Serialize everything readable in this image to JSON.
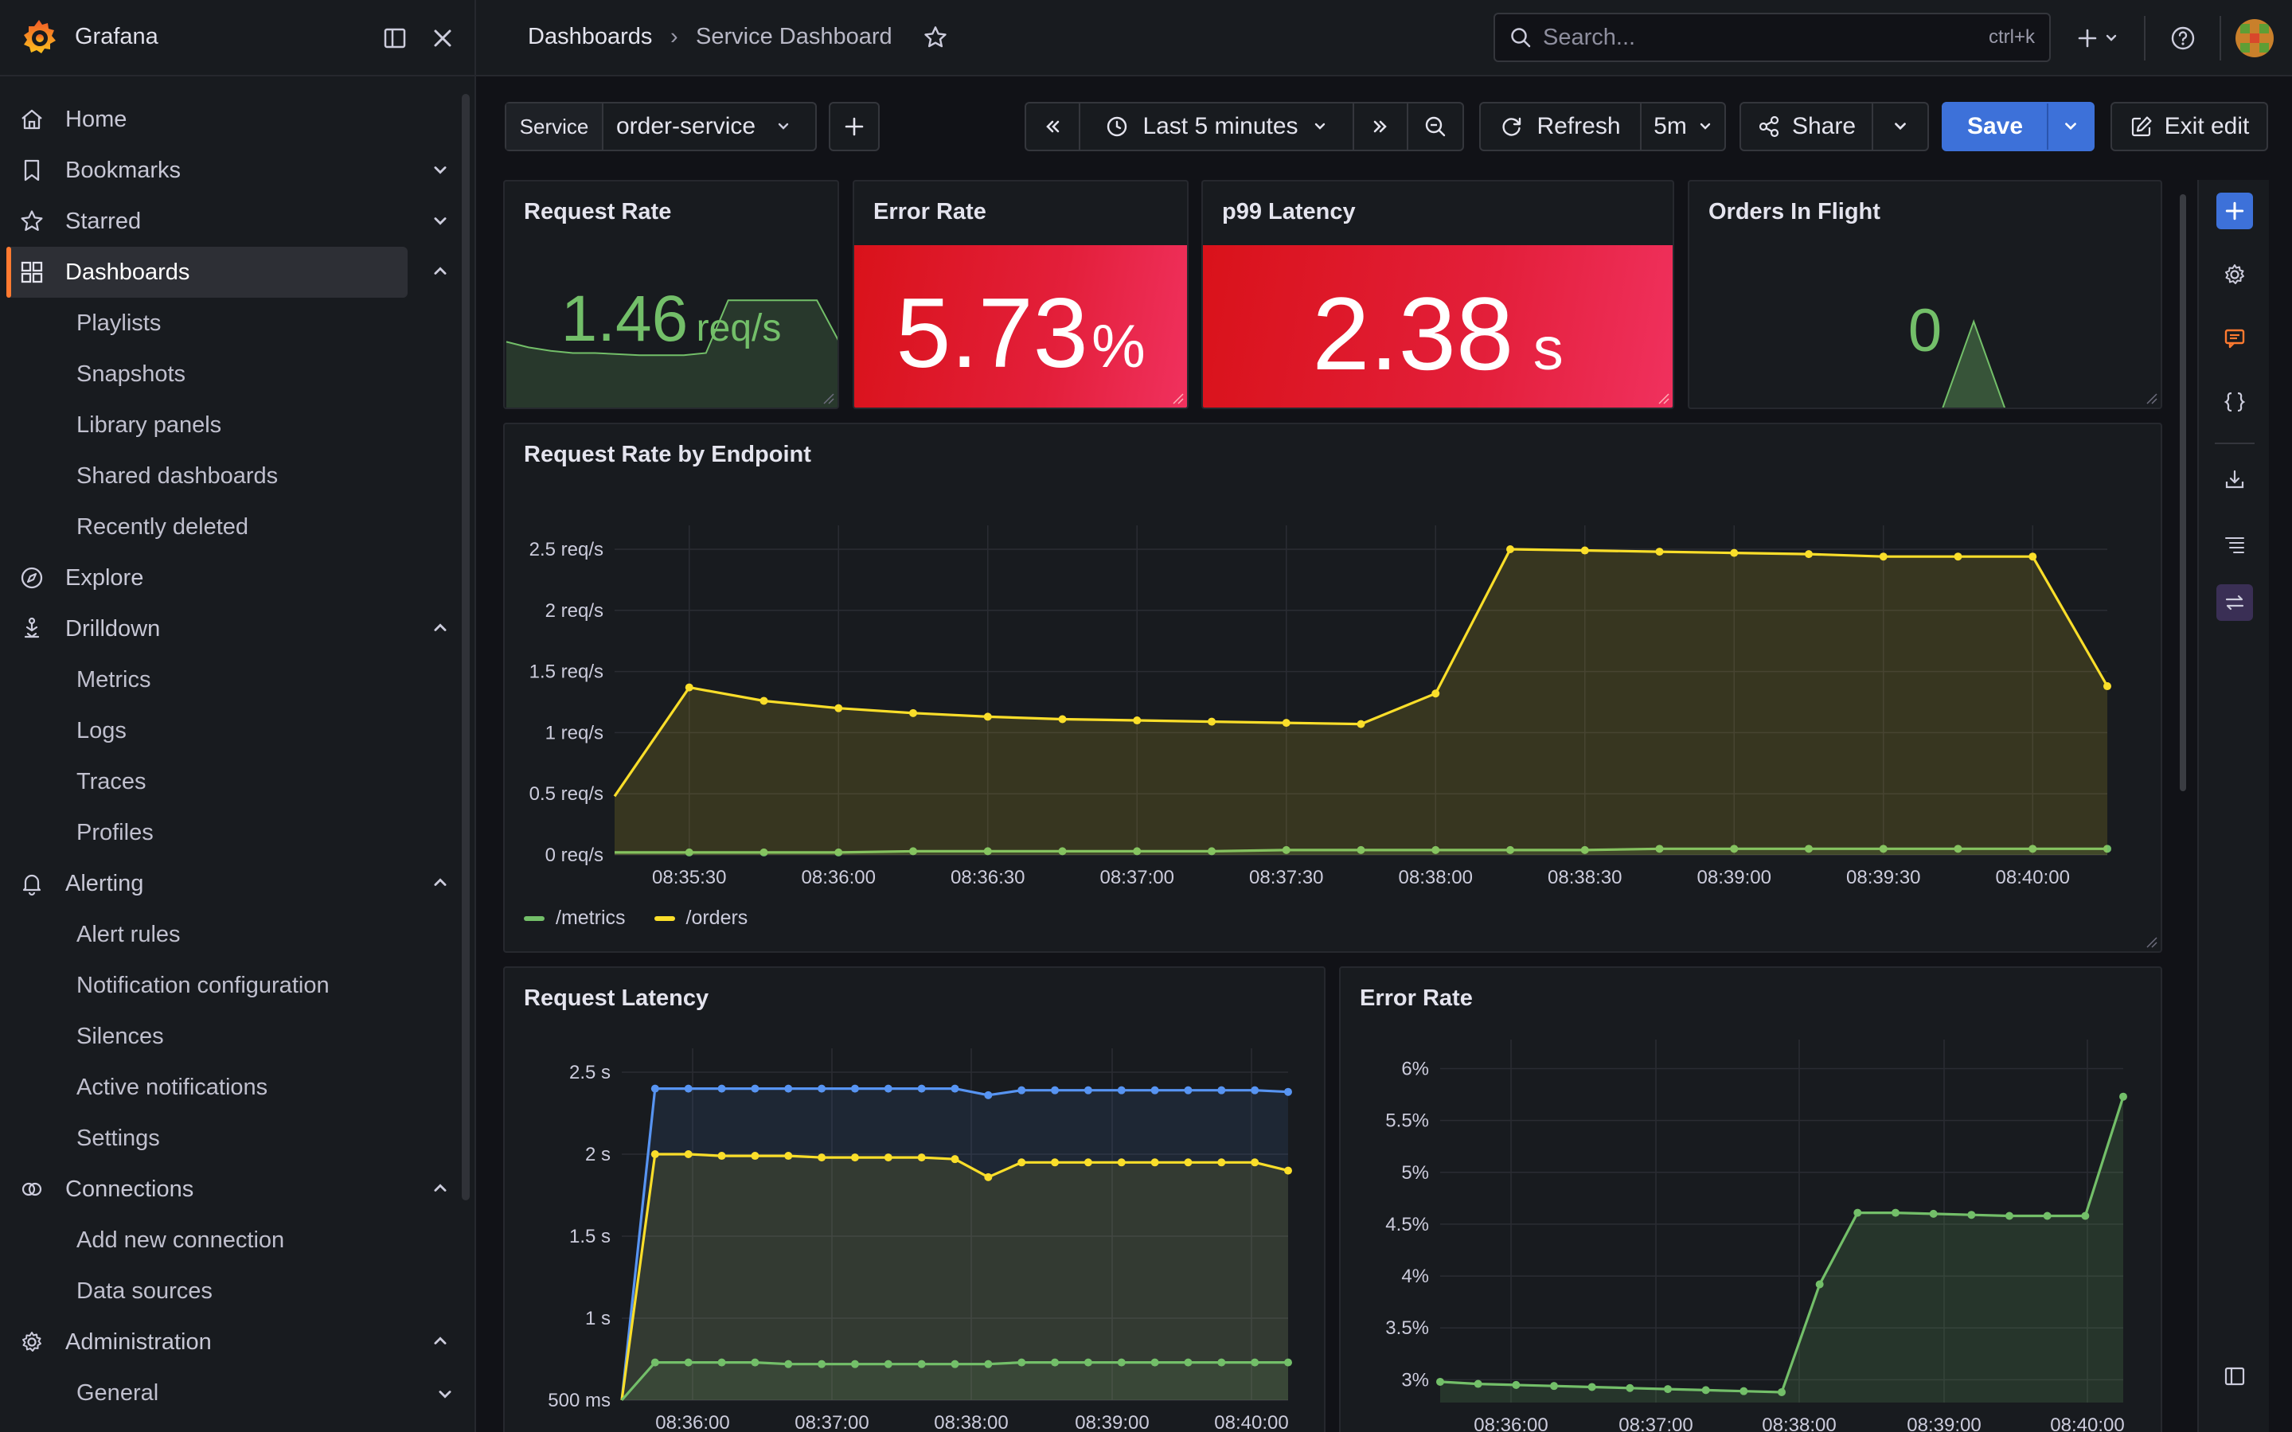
{
  "app": {
    "name": "Grafana"
  },
  "breadcrumb": {
    "root": "Dashboards",
    "separator": "›",
    "current": "Service Dashboard"
  },
  "search": {
    "placeholder": "Search...",
    "shortcut": "ctrl+k"
  },
  "sidebar": {
    "items": [
      {
        "label": "Home",
        "icon": "home-icon",
        "expandable": false,
        "active": false
      },
      {
        "label": "Bookmarks",
        "icon": "bookmark-icon",
        "expandable": true,
        "expanded": false
      },
      {
        "label": "Starred",
        "icon": "star-icon",
        "expandable": true,
        "expanded": false
      },
      {
        "label": "Dashboards",
        "icon": "dashboards-grid-icon",
        "expandable": true,
        "expanded": true,
        "active": true,
        "children": [
          "Playlists",
          "Snapshots",
          "Library panels",
          "Shared dashboards",
          "Recently deleted"
        ]
      },
      {
        "label": "Explore",
        "icon": "compass-icon",
        "expandable": false
      },
      {
        "label": "Drilldown",
        "icon": "drilldown-icon",
        "expandable": true,
        "expanded": true,
        "children": [
          "Metrics",
          "Logs",
          "Traces",
          "Profiles"
        ]
      },
      {
        "label": "Alerting",
        "icon": "bell-icon",
        "expandable": true,
        "expanded": true,
        "children": [
          "Alert rules",
          "Notification configuration",
          "Silences",
          "Active notifications",
          "Settings"
        ]
      },
      {
        "label": "Connections",
        "icon": "connections-icon",
        "expandable": true,
        "expanded": true,
        "children": [
          "Add new connection",
          "Data sources"
        ]
      },
      {
        "label": "Administration",
        "icon": "gear-icon",
        "expandable": true,
        "expanded": true,
        "children": [
          "General"
        ]
      }
    ]
  },
  "toolbar": {
    "variable_label": "Service",
    "variable_value": "order-service",
    "time_range": "Last 5 minutes",
    "refresh_label": "Refresh",
    "refresh_interval": "5m",
    "share_label": "Share",
    "save_label": "Save",
    "exit_label": "Exit edit"
  },
  "colors": {
    "accent": "#ff7a30",
    "primary_button": "#3d71d9",
    "stat_red": "#e31f3a",
    "series_green": "#73bf69",
    "series_yellow": "#fade2a",
    "series_blue": "#5794f2"
  },
  "stats": {
    "request_rate": {
      "title": "Request Rate",
      "value": "1.46",
      "unit": "req/s",
      "color": "#73bf69",
      "sparkline": [
        0.6,
        0.55,
        0.52,
        0.5,
        0.5,
        0.49,
        0.48,
        0.48,
        0.48,
        0.5,
        0.97,
        0.97,
        0.97,
        0.97,
        0.97,
        0.6
      ]
    },
    "error_rate": {
      "title": "Error Rate",
      "value": "5.73",
      "unit": "%"
    },
    "p99_latency": {
      "title": "p99 Latency",
      "value": "2.38",
      "unit": "s"
    },
    "orders_in_flight": {
      "title": "Orders In Flight",
      "value": "0",
      "sparkline": [
        0,
        0,
        0,
        0,
        0,
        0,
        0,
        0,
        0,
        1,
        0,
        0,
        0,
        0,
        0,
        0
      ]
    }
  },
  "chart_data": [
    {
      "type": "area",
      "title": "Request Rate by Endpoint",
      "x": [
        "08:35:22",
        "08:35:30",
        "08:35:45",
        "08:36:00",
        "08:36:15",
        "08:36:30",
        "08:36:45",
        "08:37:00",
        "08:37:15",
        "08:37:30",
        "08:37:45",
        "08:38:00",
        "08:38:15",
        "08:38:30",
        "08:38:45",
        "08:39:00",
        "08:39:15",
        "08:39:30",
        "08:39:45",
        "08:40:00",
        "08:40:15"
      ],
      "x_ticks": [
        "08:35:30",
        "08:36:00",
        "08:36:30",
        "08:37:00",
        "08:37:30",
        "08:38:00",
        "08:38:30",
        "08:39:00",
        "08:39:30",
        "08:40:00"
      ],
      "y_ticks": [
        "0 req/s",
        "0.5 req/s",
        "1 req/s",
        "1.5 req/s",
        "2 req/s",
        "2.5 req/s"
      ],
      "ylim": [
        0,
        2.5
      ],
      "series": [
        {
          "name": "/metrics",
          "color": "#73bf69",
          "values": [
            0.02,
            0.02,
            0.02,
            0.02,
            0.03,
            0.03,
            0.03,
            0.03,
            0.03,
            0.04,
            0.04,
            0.04,
            0.04,
            0.04,
            0.05,
            0.05,
            0.05,
            0.05,
            0.05,
            0.05,
            0.05
          ]
        },
        {
          "name": "/orders",
          "color": "#fade2a",
          "values": [
            0.48,
            1.37,
            1.26,
            1.2,
            1.16,
            1.13,
            1.11,
            1.1,
            1.09,
            1.08,
            1.07,
            1.32,
            2.5,
            2.49,
            2.48,
            2.47,
            2.46,
            2.44,
            2.44,
            2.44,
            1.38
          ]
        }
      ],
      "legend": "bottom-left"
    },
    {
      "type": "area",
      "title": "Request Latency",
      "x_ticks": [
        "08:36:00",
        "08:37:00",
        "08:38:00",
        "08:39:00",
        "08:40:00"
      ],
      "y_ticks": [
        "500 ms",
        "1 s",
        "1.5 s",
        "2 s",
        "2.5 s"
      ],
      "ylim": [
        0.5,
        2.5
      ],
      "series": [
        {
          "color": "#5794f2",
          "values": [
            0.5,
            2.4,
            2.4,
            2.4,
            2.4,
            2.4,
            2.4,
            2.4,
            2.4,
            2.4,
            2.4,
            2.36,
            2.39,
            2.39,
            2.39,
            2.39,
            2.39,
            2.39,
            2.39,
            2.39,
            2.38
          ]
        },
        {
          "color": "#fade2a",
          "values": [
            0.5,
            2.0,
            2.0,
            1.99,
            1.99,
            1.99,
            1.98,
            1.98,
            1.98,
            1.98,
            1.97,
            1.86,
            1.95,
            1.95,
            1.95,
            1.95,
            1.95,
            1.95,
            1.95,
            1.95,
            1.9
          ]
        },
        {
          "color": "#73bf69",
          "values": [
            0.5,
            0.73,
            0.73,
            0.73,
            0.73,
            0.72,
            0.72,
            0.72,
            0.72,
            0.72,
            0.72,
            0.72,
            0.73,
            0.73,
            0.73,
            0.73,
            0.73,
            0.73,
            0.73,
            0.73,
            0.73
          ]
        }
      ]
    },
    {
      "type": "area",
      "title": "Error Rate",
      "x_ticks": [
        "08:36:00",
        "08:37:00",
        "08:38:00",
        "08:39:00",
        "08:40:00"
      ],
      "y_ticks": [
        "3%",
        "3.5%",
        "4%",
        "4.5%",
        "5%",
        "5.5%",
        "6%"
      ],
      "ylim": [
        2.78,
        6.05
      ],
      "series": [
        {
          "color": "#73bf69",
          "values": [
            2.98,
            2.96,
            2.95,
            2.94,
            2.93,
            2.92,
            2.91,
            2.9,
            2.89,
            2.88,
            3.92,
            4.61,
            4.61,
            4.6,
            4.59,
            4.58,
            4.58,
            4.58,
            5.73
          ]
        }
      ]
    }
  ]
}
